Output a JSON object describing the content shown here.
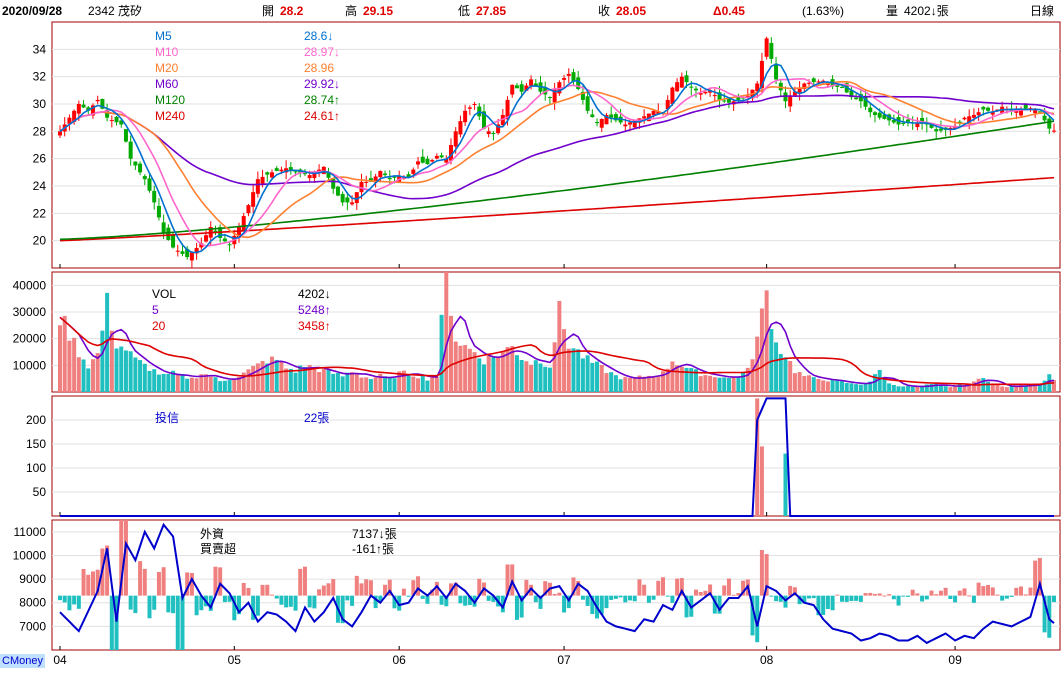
{
  "header": {
    "date": "2020/09/28",
    "stock": "2342 茂矽",
    "open_label": "開",
    "open": "28.2",
    "high_label": "高",
    "high": "29.15",
    "low_label": "低",
    "low": "27.85",
    "close_label": "收",
    "close": "28.05",
    "change": "Δ0.45",
    "change_pct": "(1.63%)",
    "volume_label": "量",
    "volume": "4202↓張",
    "period": "日線"
  },
  "brand": "CMoney",
  "colors": {
    "up": "#ff0000",
    "down": "#00aa00",
    "vol_up": "#f08080",
    "vol_down": "#20c0c0",
    "ma5": "#0070d0",
    "ma10": "#ff66cc",
    "ma20": "#ff8030",
    "ma60": "#7000cc",
    "ma120": "#008000",
    "ma240": "#dd0000"
  },
  "chart_data": [
    {
      "type": "candlestick",
      "panel": "price",
      "ylim": [
        18,
        36
      ],
      "yticks": [
        20,
        22,
        24,
        26,
        28,
        30,
        32,
        34
      ],
      "x_month_labels": [
        "04",
        "05",
        "06",
        "07",
        "08",
        "09"
      ],
      "legend": [
        {
          "name": "M5",
          "value": "28.6↓",
          "color": "#0070d0"
        },
        {
          "name": "M10",
          "value": "28.97↓",
          "color": "#ff66cc"
        },
        {
          "name": "M20",
          "value": "28.96",
          "color": "#ff8030"
        },
        {
          "name": "M60",
          "value": "29.92↓",
          "color": "#7000cc"
        },
        {
          "name": "M120",
          "value": "28.74↑",
          "color": "#008000"
        },
        {
          "name": "M240",
          "value": "24.61↑",
          "color": "#dd0000"
        }
      ],
      "close_keypoints": [
        [
          0,
          28
        ],
        [
          4,
          30
        ],
        [
          6,
          29.5
        ],
        [
          8,
          30.3
        ],
        [
          10,
          29
        ],
        [
          13,
          28.5
        ],
        [
          15,
          26
        ],
        [
          18,
          24.5
        ],
        [
          20,
          22.8
        ],
        [
          22,
          20.6
        ],
        [
          24,
          19.5
        ],
        [
          27,
          18.8
        ],
        [
          30,
          19.8
        ],
        [
          32,
          21
        ],
        [
          34,
          20.2
        ],
        [
          36,
          19.7
        ],
        [
          38,
          21
        ],
        [
          40,
          22.6
        ],
        [
          42,
          24.5
        ],
        [
          45,
          25
        ],
        [
          48,
          25.3
        ],
        [
          50,
          25
        ],
        [
          53,
          24.8
        ],
        [
          56,
          25.4
        ],
        [
          58,
          23.8
        ],
        [
          60,
          22.8
        ],
        [
          62,
          22.8
        ],
        [
          64,
          24.3
        ],
        [
          66,
          24.3
        ],
        [
          68,
          25.1
        ],
        [
          70,
          24.5
        ],
        [
          72,
          24.7
        ],
        [
          74,
          24.6
        ],
        [
          76,
          25.8
        ],
        [
          78,
          25.6
        ],
        [
          80,
          26.2
        ],
        [
          82,
          26
        ],
        [
          84,
          28
        ],
        [
          86,
          29.5
        ],
        [
          88,
          30
        ],
        [
          90,
          28.2
        ],
        [
          92,
          27.8
        ],
        [
          94,
          29.2
        ],
        [
          96,
          31.4
        ],
        [
          98,
          30.9
        ],
        [
          100,
          31.8
        ],
        [
          102,
          30.9
        ],
        [
          104,
          30.5
        ],
        [
          106,
          31.6
        ],
        [
          108,
          32.2
        ],
        [
          110,
          31.1
        ],
        [
          112,
          29.5
        ],
        [
          114,
          28.6
        ],
        [
          116,
          29.2
        ],
        [
          118,
          28.8
        ],
        [
          120,
          28.5
        ],
        [
          122,
          28.8
        ],
        [
          124,
          29.1
        ],
        [
          126,
          29.5
        ],
        [
          128,
          29.4
        ],
        [
          130,
          31.2
        ],
        [
          132,
          32
        ],
        [
          134,
          31.2
        ],
        [
          136,
          30.8
        ],
        [
          138,
          31
        ],
        [
          140,
          30.3
        ],
        [
          142,
          30.1
        ],
        [
          144,
          30.3
        ],
        [
          146,
          30.6
        ],
        [
          148,
          31.5
        ],
        [
          150,
          34.8
        ],
        [
          152,
          31.8
        ],
        [
          154,
          30.2
        ],
        [
          156,
          30.9
        ],
        [
          158,
          31.5
        ],
        [
          160,
          31.6
        ],
        [
          162,
          31.7
        ],
        [
          164,
          31.3
        ],
        [
          166,
          31.2
        ],
        [
          168,
          30.5
        ],
        [
          170,
          30.2
        ],
        [
          172,
          29.4
        ],
        [
          174,
          29
        ],
        [
          176,
          28.8
        ],
        [
          178,
          28.5
        ],
        [
          180,
          28.7
        ],
        [
          182,
          28.6
        ],
        [
          184,
          28.5
        ],
        [
          186,
          28
        ],
        [
          188,
          28.1
        ],
        [
          190,
          28.4
        ],
        [
          192,
          29
        ],
        [
          194,
          29.2
        ],
        [
          196,
          29.6
        ],
        [
          198,
          29.4
        ],
        [
          200,
          29.8
        ],
        [
          202,
          29.5
        ],
        [
          204,
          29.6
        ],
        [
          206,
          29.7
        ],
        [
          208,
          29.4
        ],
        [
          210,
          28.2
        ],
        [
          211,
          28.05
        ]
      ],
      "ma5_end": 28.6,
      "ma10_end": 28.97,
      "ma20_end": 28.96,
      "ma60_end": 29.92,
      "ma120_end": 28.74,
      "ma240_end": 24.61
    },
    {
      "type": "bar",
      "panel": "volume",
      "ylim": [
        0,
        45000
      ],
      "yticks": [
        10000,
        20000,
        30000,
        40000
      ],
      "legend": [
        {
          "name": "VOL",
          "value": "4202↓",
          "color": "#000000"
        },
        {
          "name": "5",
          "value": "5248↑",
          "color": "#7000cc"
        },
        {
          "name": "20",
          "value": "3458↑",
          "color": "#dd0000"
        }
      ],
      "volume_keypoints": [
        [
          0,
          28000
        ],
        [
          2,
          22000
        ],
        [
          4,
          15000
        ],
        [
          6,
          10000
        ],
        [
          8,
          14000
        ],
        [
          10,
          33000
        ],
        [
          12,
          18000
        ],
        [
          14,
          16000
        ],
        [
          16,
          12000
        ],
        [
          18,
          10000
        ],
        [
          20,
          8000
        ],
        [
          22,
          6000
        ],
        [
          24,
          7000
        ],
        [
          26,
          6000
        ],
        [
          28,
          5000
        ],
        [
          30,
          7000
        ],
        [
          32,
          6000
        ],
        [
          34,
          4000
        ],
        [
          36,
          5000
        ],
        [
          38,
          6000
        ],
        [
          40,
          8000
        ],
        [
          42,
          10000
        ],
        [
          44,
          12000
        ],
        [
          46,
          12000
        ],
        [
          48,
          9000
        ],
        [
          50,
          8000
        ],
        [
          52,
          10000
        ],
        [
          54,
          9000
        ],
        [
          56,
          8000
        ],
        [
          58,
          7000
        ],
        [
          60,
          6000
        ],
        [
          62,
          8000
        ],
        [
          64,
          6000
        ],
        [
          66,
          5000
        ],
        [
          68,
          6000
        ],
        [
          70,
          5000
        ],
        [
          72,
          7000
        ],
        [
          74,
          7000
        ],
        [
          76,
          6000
        ],
        [
          78,
          5000
        ],
        [
          80,
          6000
        ],
        [
          82,
          45000
        ],
        [
          84,
          20000
        ],
        [
          86,
          17000
        ],
        [
          88,
          15000
        ],
        [
          90,
          12000
        ],
        [
          92,
          13000
        ],
        [
          94,
          15000
        ],
        [
          96,
          17000
        ],
        [
          98,
          13000
        ],
        [
          100,
          11000
        ],
        [
          102,
          12000
        ],
        [
          104,
          10000
        ],
        [
          106,
          30000
        ],
        [
          108,
          18000
        ],
        [
          110,
          15000
        ],
        [
          112,
          12000
        ],
        [
          114,
          10000
        ],
        [
          116,
          8000
        ],
        [
          118,
          6000
        ],
        [
          120,
          5000
        ],
        [
          122,
          5000
        ],
        [
          124,
          6000
        ],
        [
          126,
          6000
        ],
        [
          128,
          7000
        ],
        [
          130,
          12000
        ],
        [
          132,
          10000
        ],
        [
          134,
          8000
        ],
        [
          136,
          7000
        ],
        [
          138,
          6000
        ],
        [
          140,
          6000
        ],
        [
          142,
          5000
        ],
        [
          144,
          6000
        ],
        [
          146,
          8000
        ],
        [
          148,
          20000
        ],
        [
          150,
          37000
        ],
        [
          152,
          18000
        ],
        [
          154,
          14000
        ],
        [
          156,
          8000
        ],
        [
          158,
          6000
        ],
        [
          160,
          5000
        ],
        [
          162,
          5000
        ],
        [
          164,
          4000
        ],
        [
          166,
          4000
        ],
        [
          168,
          3000
        ],
        [
          170,
          3000
        ],
        [
          172,
          4000
        ],
        [
          174,
          8000
        ],
        [
          176,
          3000
        ],
        [
          178,
          2500
        ],
        [
          180,
          2000
        ],
        [
          182,
          2000
        ],
        [
          184,
          2500
        ],
        [
          186,
          3000
        ],
        [
          188,
          2000
        ],
        [
          190,
          2000
        ],
        [
          192,
          3000
        ],
        [
          194,
          3500
        ],
        [
          196,
          6000
        ],
        [
          198,
          3000
        ],
        [
          200,
          2000
        ],
        [
          202,
          2000
        ],
        [
          204,
          2500
        ],
        [
          206,
          2500
        ],
        [
          208,
          3000
        ],
        [
          210,
          7000
        ],
        [
          211,
          4202
        ]
      ]
    },
    {
      "type": "line",
      "panel": "investment_trust",
      "name": "投信",
      "value": "22張",
      "ylim": [
        0,
        250
      ],
      "yticks": [
        50,
        100,
        150,
        200
      ],
      "line_keypoints": [
        [
          0,
          0
        ],
        [
          147,
          0
        ],
        [
          148,
          200
        ],
        [
          150,
          245
        ],
        [
          154,
          245
        ],
        [
          155,
          0
        ],
        [
          211,
          0
        ]
      ],
      "bars_keypoints": [
        [
          148,
          245
        ],
        [
          149,
          145
        ],
        [
          154,
          130
        ]
      ]
    },
    {
      "type": "bar",
      "panel": "foreign",
      "names": [
        "外資",
        "買賣超"
      ],
      "values": [
        "7137↓張",
        "-161↑張"
      ],
      "ylim": [
        6000,
        11500
      ],
      "yticks": [
        7000,
        8000,
        9000,
        10000,
        11000
      ],
      "bar_baseline": 8300,
      "line_keypoints": [
        [
          0,
          7600
        ],
        [
          4,
          6800
        ],
        [
          8,
          8500
        ],
        [
          10,
          10300
        ],
        [
          12,
          7200
        ],
        [
          14,
          10500
        ],
        [
          16,
          9800
        ],
        [
          18,
          11000
        ],
        [
          20,
          10300
        ],
        [
          22,
          11300
        ],
        [
          24,
          10800
        ],
        [
          26,
          8200
        ],
        [
          28,
          9000
        ],
        [
          30,
          8300
        ],
        [
          32,
          7800
        ],
        [
          34,
          8800
        ],
        [
          36,
          8400
        ],
        [
          38,
          7600
        ],
        [
          40,
          8000
        ],
        [
          42,
          7200
        ],
        [
          44,
          7600
        ],
        [
          46,
          7500
        ],
        [
          48,
          7200
        ],
        [
          50,
          6800
        ],
        [
          52,
          7800
        ],
        [
          54,
          7200
        ],
        [
          56,
          7600
        ],
        [
          58,
          8200
        ],
        [
          60,
          7300
        ],
        [
          62,
          7000
        ],
        [
          64,
          7600
        ],
        [
          66,
          8300
        ],
        [
          68,
          8000
        ],
        [
          70,
          8500
        ],
        [
          72,
          7900
        ],
        [
          74,
          8000
        ],
        [
          76,
          8600
        ],
        [
          78,
          8300
        ],
        [
          80,
          8700
        ],
        [
          82,
          8200
        ],
        [
          84,
          8800
        ],
        [
          86,
          8500
        ],
        [
          88,
          8000
        ],
        [
          90,
          8600
        ],
        [
          92,
          8300
        ],
        [
          94,
          7800
        ],
        [
          96,
          8900
        ],
        [
          98,
          8100
        ],
        [
          100,
          8600
        ],
        [
          102,
          8200
        ],
        [
          104,
          8600
        ],
        [
          106,
          8700
        ],
        [
          108,
          8100
        ],
        [
          110,
          8800
        ],
        [
          112,
          8500
        ],
        [
          114,
          7800
        ],
        [
          116,
          7200
        ],
        [
          118,
          7000
        ],
        [
          120,
          6900
        ],
        [
          122,
          6800
        ],
        [
          124,
          7300
        ],
        [
          126,
          7200
        ],
        [
          128,
          7900
        ],
        [
          130,
          7700
        ],
        [
          132,
          8500
        ],
        [
          134,
          7800
        ],
        [
          136,
          8100
        ],
        [
          138,
          8400
        ],
        [
          140,
          7700
        ],
        [
          142,
          8200
        ],
        [
          144,
          8200
        ],
        [
          146,
          8700
        ],
        [
          148,
          7000
        ],
        [
          150,
          8700
        ],
        [
          152,
          8500
        ],
        [
          154,
          8100
        ],
        [
          156,
          8400
        ],
        [
          158,
          8000
        ],
        [
          160,
          7900
        ],
        [
          162,
          7300
        ],
        [
          164,
          6900
        ],
        [
          166,
          6800
        ],
        [
          168,
          6700
        ],
        [
          170,
          6400
        ],
        [
          172,
          6500
        ],
        [
          174,
          6700
        ],
        [
          176,
          6600
        ],
        [
          178,
          6400
        ],
        [
          180,
          6400
        ],
        [
          182,
          6600
        ],
        [
          184,
          6300
        ],
        [
          186,
          6500
        ],
        [
          188,
          6700
        ],
        [
          190,
          6400
        ],
        [
          192,
          6600
        ],
        [
          194,
          6500
        ],
        [
          196,
          6900
        ],
        [
          198,
          7200
        ],
        [
          200,
          7100
        ],
        [
          202,
          7000
        ],
        [
          204,
          7200
        ],
        [
          206,
          7400
        ],
        [
          208,
          8800
        ],
        [
          210,
          7300
        ],
        [
          211,
          7137
        ]
      ]
    }
  ]
}
